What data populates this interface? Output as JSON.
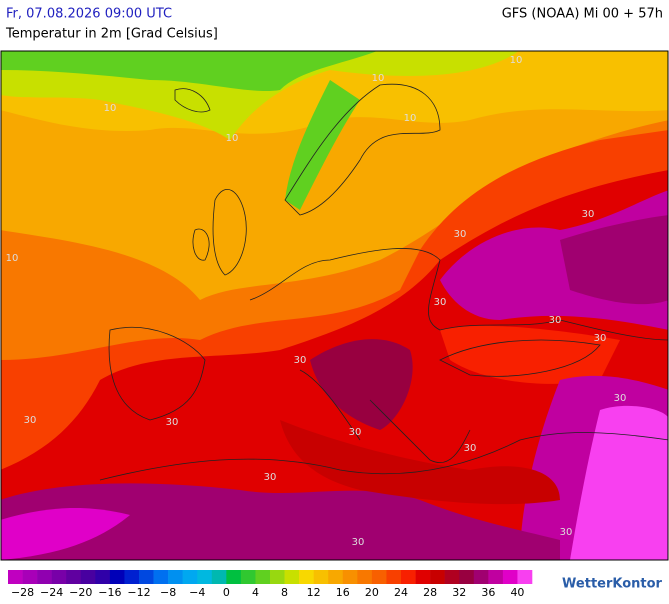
{
  "header": {
    "datetime": "Fr, 07.08.2026 09:00 UTC",
    "subtitle": "Temperatur in 2m [Grad Celsius]",
    "model": "GFS (NOAA) Mi 00 + 57h"
  },
  "map": {
    "contour_labels": [
      "10",
      "10",
      "10",
      "10",
      "10",
      "10",
      "30",
      "30",
      "30",
      "30",
      "30",
      "30",
      "30",
      "30",
      "30",
      "30",
      "30",
      "30",
      "30",
      "30"
    ]
  },
  "colorbar": {
    "lim": [
      -30,
      42
    ],
    "colors": [
      "#c000c0",
      "#a800b8",
      "#9000b0",
      "#7800a8",
      "#6000a0",
      "#4800a0",
      "#3000a8",
      "#0000b8",
      "#0020d0",
      "#0048e0",
      "#0070f0",
      "#0090f0",
      "#00a8f0",
      "#00b8e0",
      "#00b8b0",
      "#00c040",
      "#30c830",
      "#60d020",
      "#98d810",
      "#c8e000",
      "#f8d800",
      "#f8c000",
      "#f8a800",
      "#f89000",
      "#f87800",
      "#f86000",
      "#f84000",
      "#f82000",
      "#e00000",
      "#c80000",
      "#b00020",
      "#980040",
      "#a00070",
      "#c000a0",
      "#e000c8",
      "#f840f0"
    ],
    "ticks": [
      {
        "value": -28,
        "label": "−28"
      },
      {
        "value": -24,
        "label": "−24"
      },
      {
        "value": -20,
        "label": "−20"
      },
      {
        "value": -16,
        "label": "−16"
      },
      {
        "value": -12,
        "label": "−12"
      },
      {
        "value": -8,
        "label": "−8"
      },
      {
        "value": -4,
        "label": "−4"
      },
      0,
      4,
      8,
      12,
      16,
      20,
      24,
      28,
      32,
      36,
      40
    ]
  },
  "brand": "WetterKontor"
}
